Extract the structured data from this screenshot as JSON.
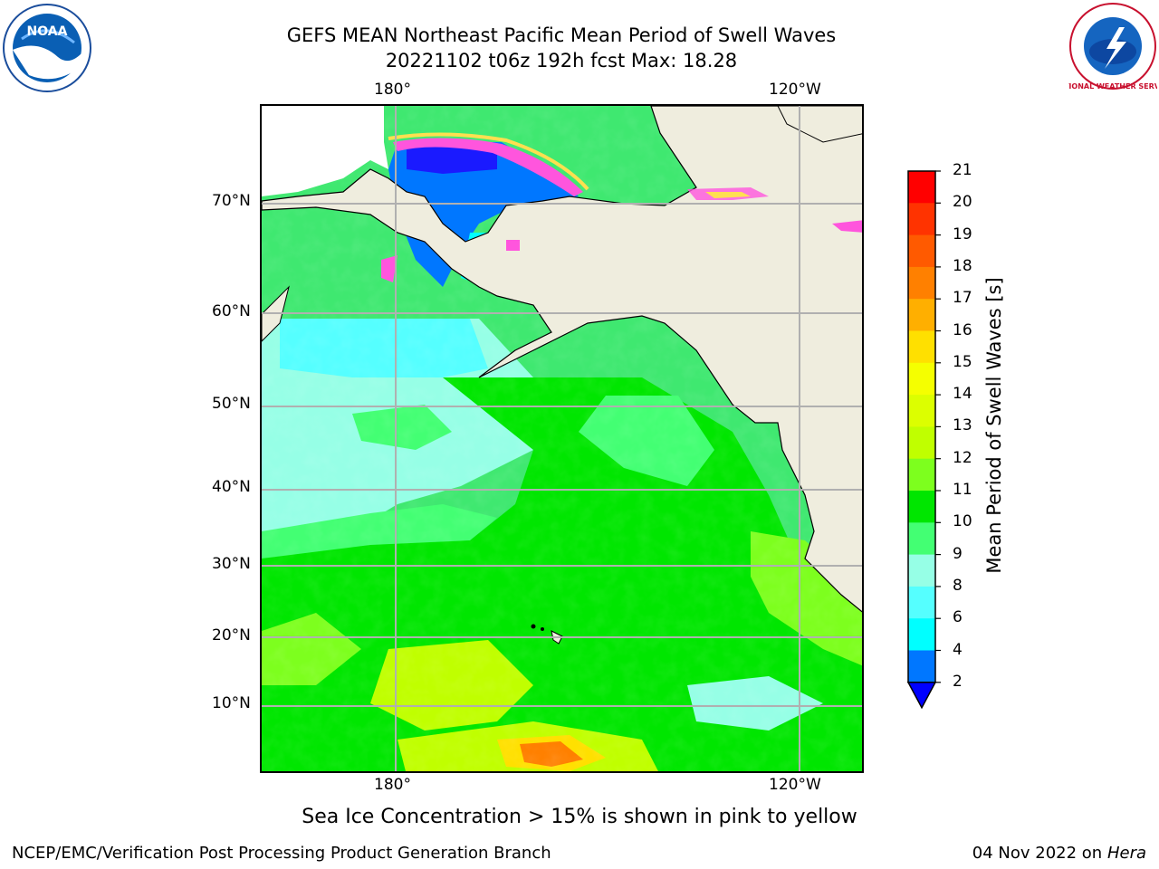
{
  "title": {
    "line1": "GEFS MEAN Northeast Pacific Mean Period of Swell Waves",
    "line2": "20221102 t06z 192h fcst   Max: 18.28"
  },
  "logos": {
    "left": {
      "icon": "noaa-logo",
      "text": "NOAA"
    },
    "right": {
      "icon": "nws-logo",
      "text": "NATIONAL WEATHER SERVICE"
    }
  },
  "map": {
    "lon_labels": [
      "180°",
      "120°W"
    ],
    "lat_labels": [
      "70°N",
      "60°N",
      "50°N",
      "40°N",
      "30°N",
      "20°N",
      "10°N"
    ],
    "colors": {
      "land": "#efedde",
      "grid": "#b0b0b0",
      "coast": "#000000",
      "ice_pink": "#ff55dd",
      "ice_yellow": "#ffdf50"
    }
  },
  "colorbar": {
    "label": "Mean Period of Swell Waves [s]",
    "ticks": [
      "21",
      "20",
      "19",
      "18",
      "17",
      "16",
      "15",
      "14",
      "13",
      "12",
      "11",
      "10",
      "9",
      "8",
      "6",
      "4",
      "2"
    ],
    "colors": [
      "#ff0000",
      "#ff3300",
      "#ff5a00",
      "#ff8000",
      "#ffaf00",
      "#ffe000",
      "#f5ff00",
      "#dcff00",
      "#c0ff00",
      "#7dff1e",
      "#00e600",
      "#43ff73",
      "#96ffe6",
      "#55ffff",
      "#00ffff",
      "#0077ff"
    ],
    "under_color": "#0000ff"
  },
  "note": "Sea Ice Concentration > 15% is shown in pink to yellow",
  "footer": {
    "left": "NCEP/EMC/Verification Post Processing Product Generation Branch",
    "date": "04 Nov 2022 on",
    "host": "Hera"
  }
}
